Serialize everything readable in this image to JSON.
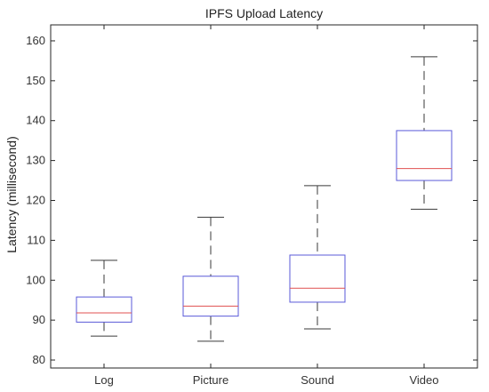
{
  "chart_data": {
    "type": "box",
    "title": "IPFS Upload Latency",
    "xlabel": "",
    "ylabel": "Latency (millisecond)",
    "ylim": [
      78,
      164
    ],
    "yticks": [
      80,
      90,
      100,
      110,
      120,
      130,
      140,
      150,
      160
    ],
    "categories": [
      "Log",
      "Picture",
      "Sound",
      "Video"
    ],
    "boxes": [
      {
        "category": "Log",
        "whisker_low": 86,
        "q1": 89.5,
        "median": 91.8,
        "q3": 95.8,
        "whisker_high": 105
      },
      {
        "category": "Picture",
        "whisker_low": 84.7,
        "q1": 91,
        "median": 93.5,
        "q3": 101,
        "whisker_high": 115.8
      },
      {
        "category": "Sound",
        "whisker_low": 87.8,
        "q1": 94.5,
        "median": 98,
        "q3": 106.3,
        "whisker_high": 123.7
      },
      {
        "category": "Video",
        "whisker_low": 117.8,
        "q1": 125,
        "median": 128,
        "q3": 137.5,
        "whisker_high": 156
      }
    ],
    "grid": false,
    "colors": {
      "box": "#5a5ad8",
      "median": "#e05050",
      "whisker": "#3a3a3a",
      "axes": "#262626"
    }
  }
}
